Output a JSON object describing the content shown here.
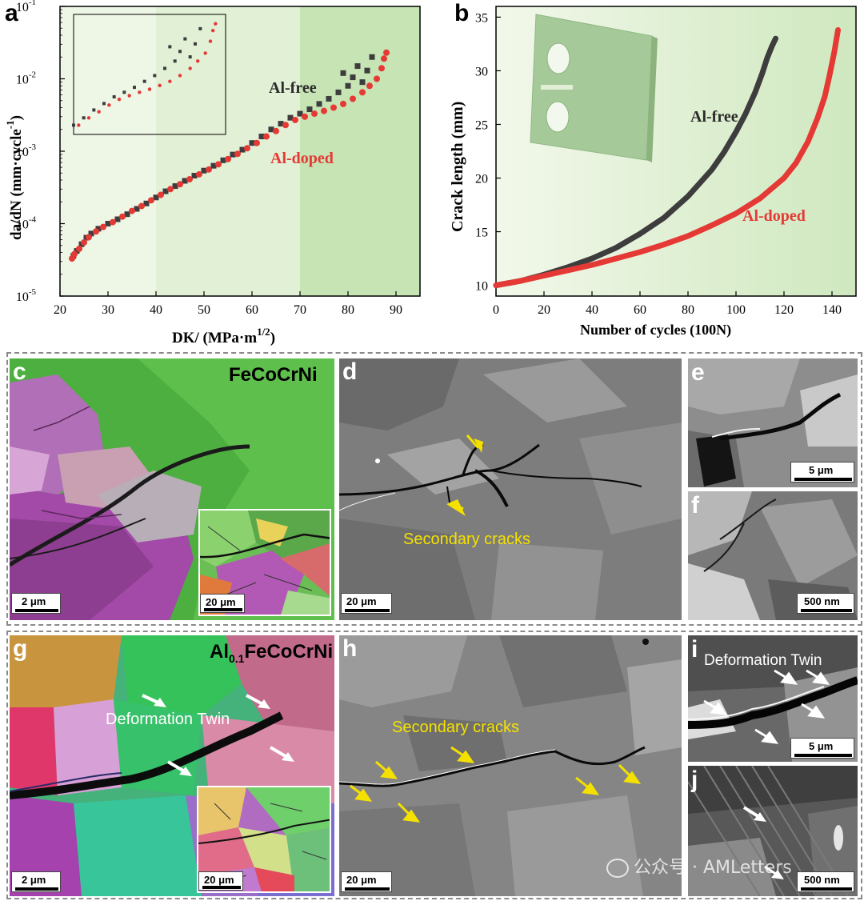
{
  "panels": {
    "a": "a",
    "b": "b",
    "c": "c",
    "d": "d",
    "e": "e",
    "f": "f",
    "g": "g",
    "h": "h",
    "i": "i",
    "j": "j"
  },
  "chart_data": [
    {
      "type": "scatter",
      "panel": "a",
      "xlabel": "DK/ (MPa·m",
      "xlabel_sup": "1/2",
      "xlabel_end": ")",
      "ylabel": "da/dN (mm·cycle",
      "ylabel_sup": "-1",
      "ylabel_end": ")",
      "xlim": [
        20,
        95
      ],
      "ylim": [
        1e-05,
        0.1
      ],
      "yscale": "log",
      "xticks": [
        20,
        30,
        40,
        50,
        60,
        70,
        80,
        90
      ],
      "yticks": [
        {
          "value": 1e-05,
          "base": "10",
          "exp": "-5"
        },
        {
          "value": 0.0001,
          "base": "10",
          "exp": "-4"
        },
        {
          "value": 0.001,
          "base": "10",
          "exp": "-3"
        },
        {
          "value": 0.01,
          "base": "10",
          "exp": "-2"
        },
        {
          "value": 0.1,
          "base": "10",
          "exp": "-1"
        }
      ],
      "shaded_regions": [
        {
          "x": [
            20,
            40
          ],
          "color": "#eef6e6"
        },
        {
          "x": [
            40,
            70
          ],
          "color": "#e2f0d6"
        },
        {
          "x": [
            70,
            95
          ],
          "color": "#c7e4b5"
        }
      ],
      "series": [
        {
          "name": "Al-free",
          "color": "#3d3d3d",
          "marker": "square",
          "points": [
            [
              22.8,
              3.6e-05
            ],
            [
              23.5,
              4.2e-05
            ],
            [
              24.5,
              5.2e-05
            ],
            [
              25.5,
              6.4e-05
            ],
            [
              26.5,
              7.3e-05
            ],
            [
              28,
              8.5e-05
            ],
            [
              30,
              0.0001
            ],
            [
              32,
              0.000115
            ],
            [
              34,
              0.000135
            ],
            [
              36,
              0.00016
            ],
            [
              38,
              0.00019
            ],
            [
              40,
              0.00023
            ],
            [
              42,
              0.00028
            ],
            [
              44,
              0.00033
            ],
            [
              46,
              0.00039
            ],
            [
              48,
              0.00046
            ],
            [
              50,
              0.00054
            ],
            [
              52,
              0.00063
            ],
            [
              54,
              0.00075
            ],
            [
              56,
              0.0009
            ],
            [
              58,
              0.00105
            ],
            [
              60,
              0.0013
            ],
            [
              62,
              0.0016
            ],
            [
              64,
              0.002
            ],
            [
              66,
              0.0024
            ],
            [
              68,
              0.0029
            ],
            [
              70,
              0.0033
            ],
            [
              72,
              0.0038
            ],
            [
              74,
              0.0045
            ],
            [
              76,
              0.0053
            ],
            [
              78,
              0.0065
            ],
            [
              79,
              0.012
            ],
            [
              80,
              0.008
            ],
            [
              81,
              0.0105
            ],
            [
              82,
              0.015
            ],
            [
              83,
              0.009
            ],
            [
              84,
              0.013
            ],
            [
              85,
              0.02
            ]
          ]
        },
        {
          "name": "Al-doped",
          "color": "#e53935",
          "marker": "circle",
          "points": [
            [
              22.5,
              3.3e-05
            ],
            [
              23,
              3.8e-05
            ],
            [
              24,
              4.5e-05
            ],
            [
              25,
              5.5e-05
            ],
            [
              26,
              6.5e-05
            ],
            [
              27.5,
              7.8e-05
            ],
            [
              29,
              9e-05
            ],
            [
              31,
              0.000105
            ],
            [
              33,
              0.000125
            ],
            [
              35,
              0.00015
            ],
            [
              37,
              0.000175
            ],
            [
              39,
              0.00021
            ],
            [
              41,
              0.00025
            ],
            [
              43,
              0.0003
            ],
            [
              45,
              0.00035
            ],
            [
              47,
              0.00041
            ],
            [
              49,
              0.00048
            ],
            [
              51,
              0.00056
            ],
            [
              53,
              0.00066
            ],
            [
              55,
              0.00078
            ],
            [
              57,
              0.00092
            ],
            [
              59,
              0.0011
            ],
            [
              61,
              0.0013
            ],
            [
              63,
              0.0016
            ],
            [
              65,
              0.0019
            ],
            [
              67,
              0.0023
            ],
            [
              69,
              0.0027
            ],
            [
              71,
              0.003
            ],
            [
              73,
              0.0033
            ],
            [
              75,
              0.0036
            ],
            [
              77,
              0.004
            ],
            [
              79,
              0.0045
            ],
            [
              81,
              0.0053
            ],
            [
              83,
              0.0065
            ],
            [
              84.5,
              0.008
            ],
            [
              86,
              0.01
            ],
            [
              87,
              0.014
            ],
            [
              87.5,
              0.019
            ],
            [
              88,
              0.023
            ]
          ]
        }
      ],
      "annotations": [
        {
          "text": "Al-free",
          "color": "#2a2a2a"
        },
        {
          "text": "Al-doped",
          "color": "#e53935"
        }
      ]
    },
    {
      "type": "line",
      "panel": "b",
      "xlabel": "Number of cycles (100N)",
      "ylabel": "Crack length (mm)",
      "xlim": [
        0,
        150
      ],
      "ylim": [
        9,
        36
      ],
      "xticks": [
        0,
        20,
        40,
        60,
        80,
        100,
        120,
        140
      ],
      "yticks": [
        10,
        15,
        20,
        25,
        30,
        35
      ],
      "series": [
        {
          "name": "Al-free",
          "color": "#3d3d3d",
          "x": [
            0,
            10,
            20,
            30,
            40,
            50,
            60,
            70,
            80,
            90,
            95,
            100,
            104,
            108,
            111,
            113,
            115,
            116.5
          ],
          "y": [
            10,
            10.4,
            11,
            11.7,
            12.5,
            13.5,
            14.8,
            16.3,
            18.3,
            20.8,
            22.4,
            24.3,
            26.0,
            28.0,
            29.8,
            31.2,
            32.3,
            33.0
          ]
        },
        {
          "name": "Al-doped",
          "color": "#e53935",
          "x": [
            0,
            10,
            20,
            30,
            40,
            50,
            60,
            70,
            80,
            90,
            100,
            110,
            120,
            125,
            130,
            134,
            137,
            139,
            141,
            142.5
          ],
          "y": [
            10,
            10.4,
            10.9,
            11.4,
            11.9,
            12.5,
            13.1,
            13.8,
            14.6,
            15.6,
            16.7,
            18.1,
            20.0,
            21.4,
            23.4,
            25.6,
            27.6,
            29.6,
            31.8,
            33.8
          ]
        }
      ],
      "annotations": [
        {
          "text": "Al-free",
          "color": "#2a2a2a"
        },
        {
          "text": "Al-doped",
          "color": "#e53935"
        }
      ]
    }
  ],
  "micro": {
    "c_material": "FeCoCrNi",
    "g_material_pre": "Al",
    "g_material_sub": "0.1",
    "g_material_post": "FeCoCrNi",
    "secondary_cracks": "Secondary cracks",
    "deformation_twin": "Deformation Twin",
    "scalebars": {
      "c": "2 μm",
      "c_inset": "20 μm",
      "d": "20 μm",
      "e": "5 μm",
      "f": "500 nm",
      "g": "2 μm",
      "g_inset": "20 μm",
      "h": "20 μm",
      "i": "5 μm",
      "j": "500 nm"
    },
    "watermark": "公众号 · AMLetters"
  }
}
